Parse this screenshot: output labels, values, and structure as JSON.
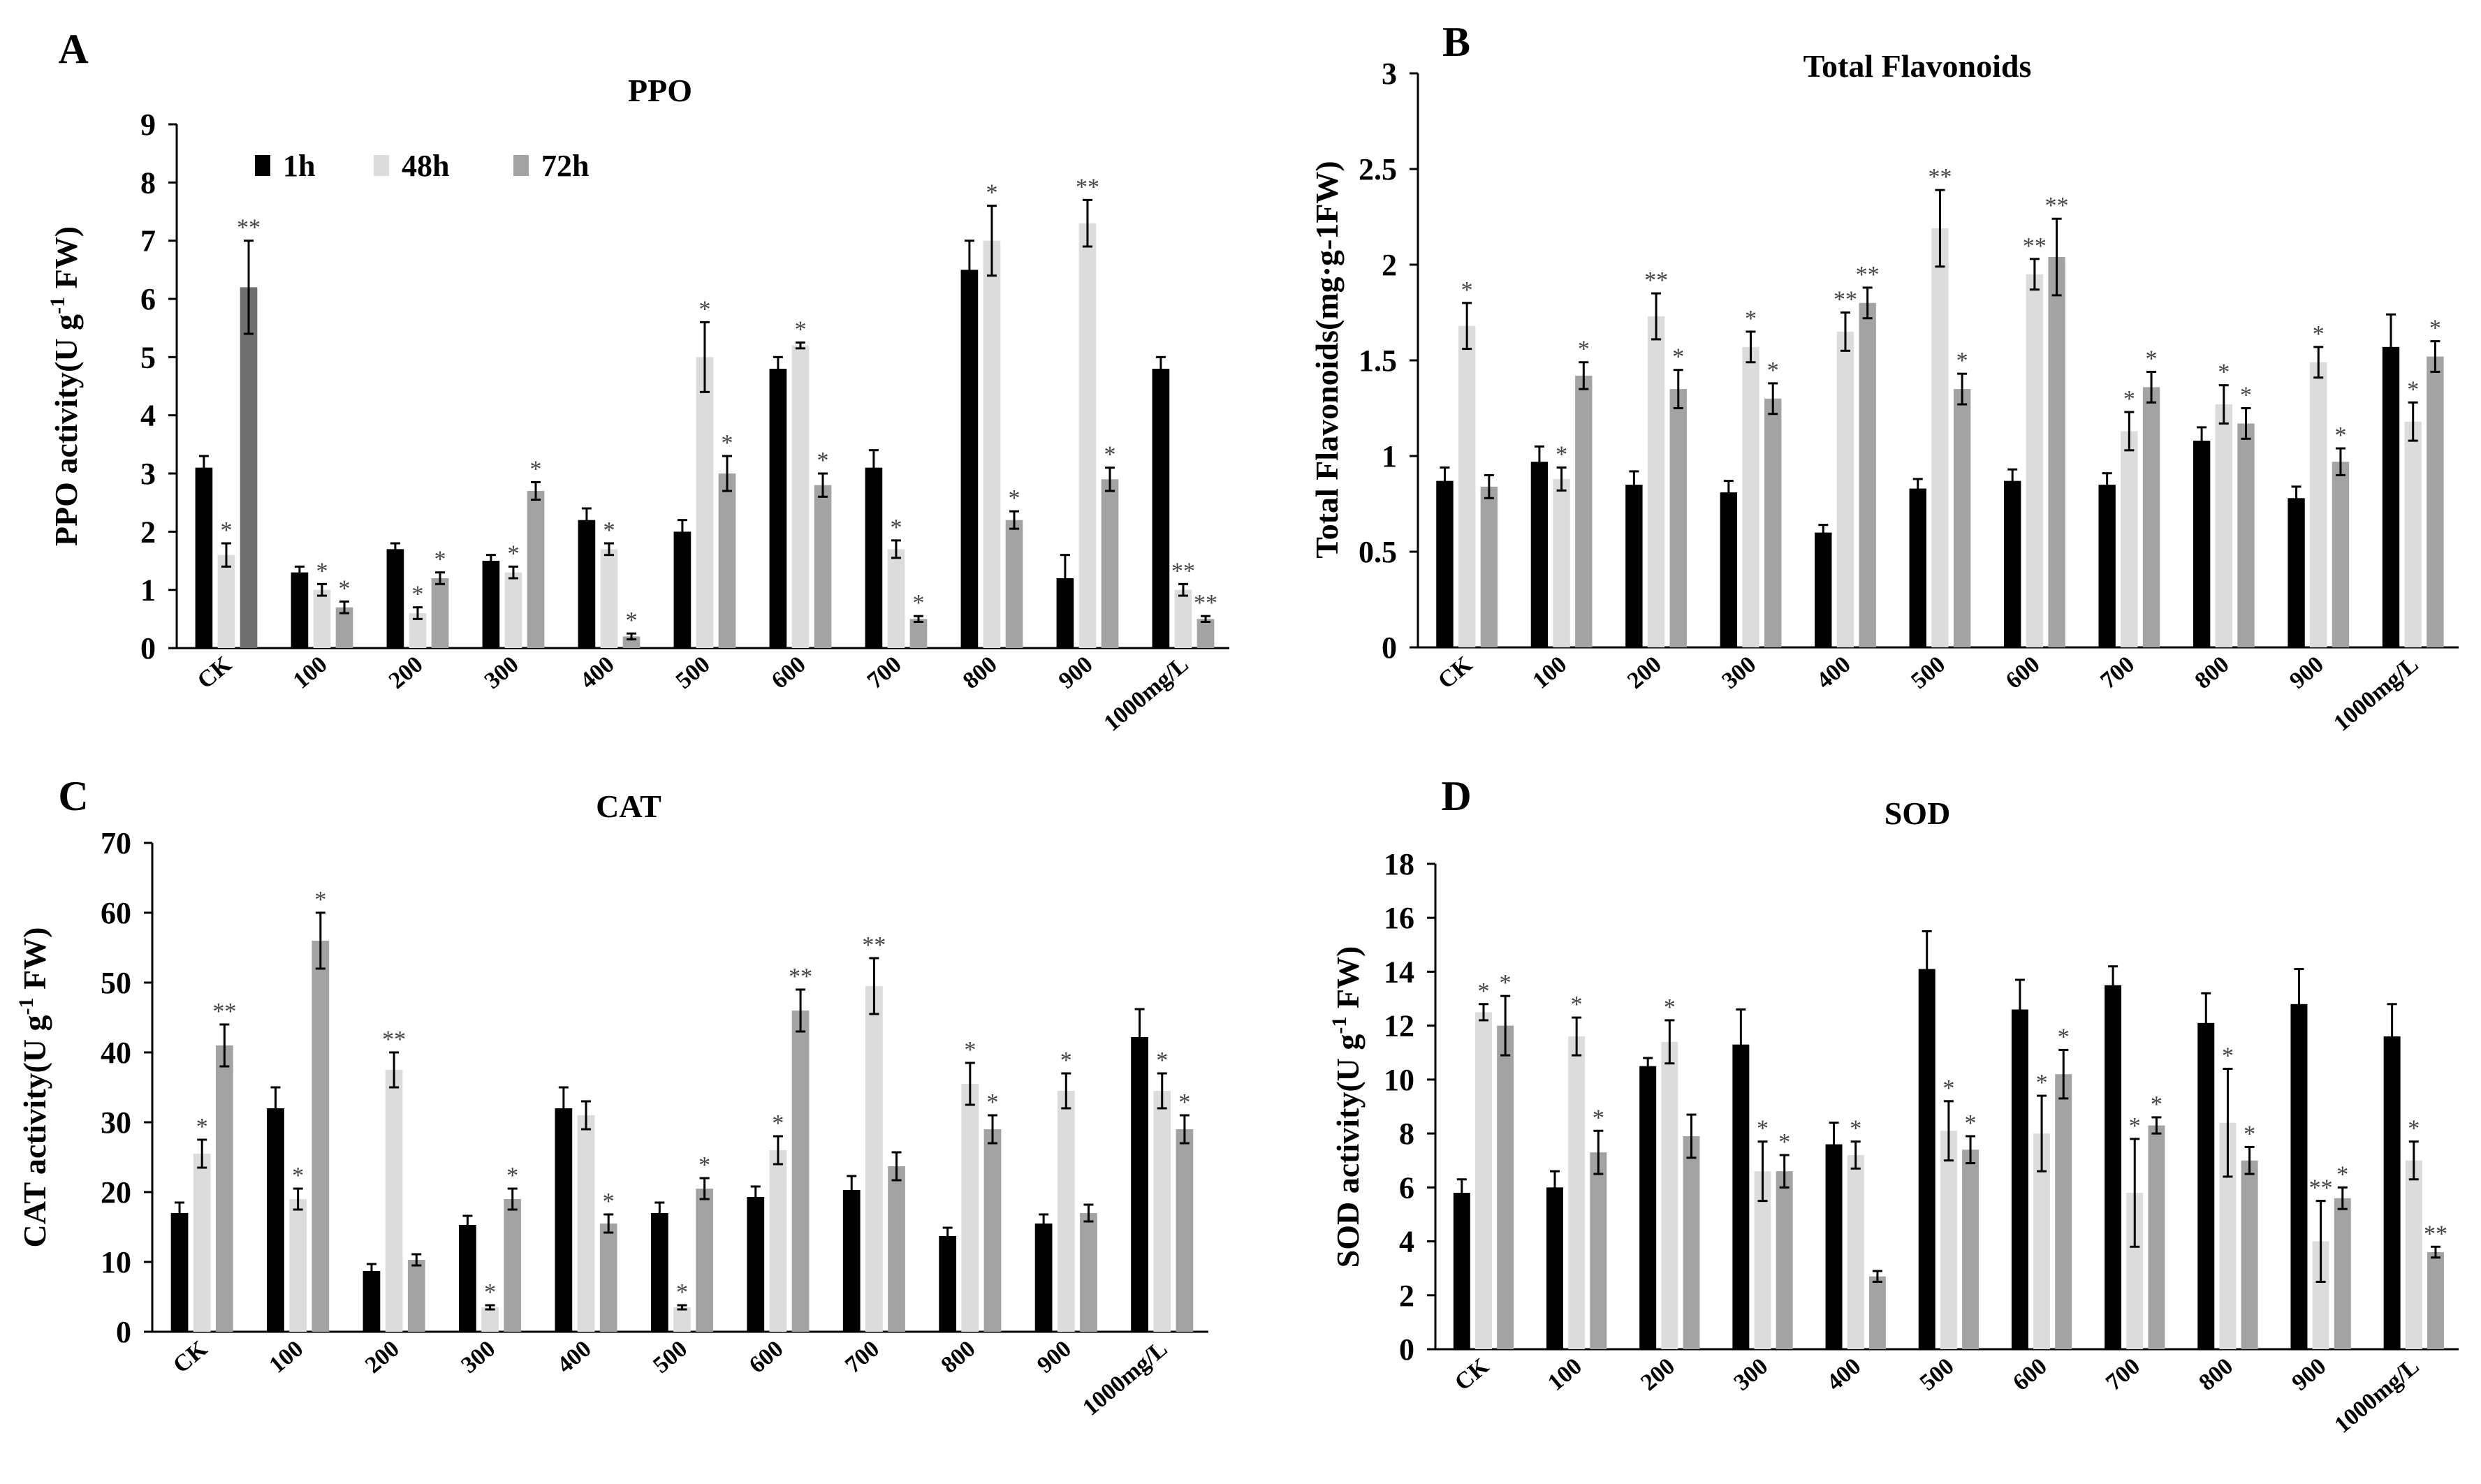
{
  "colors": {
    "s1": "#000000",
    "s2": "#dcdcdc",
    "s3": "#a3a3a3",
    "s3_highlight": "#707070"
  },
  "legend": [
    "1h",
    "48h",
    "72h"
  ],
  "chart_data": [
    {
      "panel": "A",
      "type": "bar",
      "title": "PPO",
      "ylabel": "PPO activity(U g-1 FW)",
      "ylabel_parts": {
        "main": "PPO activity(U g",
        "sup": "-1",
        "tail": " FW)"
      },
      "ylim": [
        0,
        9
      ],
      "yticks": [
        "0",
        "1",
        "2",
        "3",
        "4",
        "5",
        "6",
        "7",
        "8",
        "9"
      ],
      "categories": [
        "CK",
        "100",
        "200",
        "300",
        "400",
        "500",
        "600",
        "700",
        "800",
        "900",
        "1000mg/L"
      ],
      "series": [
        {
          "name": "1h",
          "values": [
            3.1,
            1.3,
            1.7,
            1.5,
            2.2,
            2.0,
            4.8,
            3.1,
            6.5,
            1.2,
            4.8
          ],
          "errors": [
            0.2,
            0.1,
            0.1,
            0.1,
            0.2,
            0.2,
            0.2,
            0.3,
            0.5,
            0.4,
            0.2
          ],
          "marks": [
            "",
            "",
            "",
            "",
            "",
            "",
            "",
            "",
            "",
            "",
            ""
          ]
        },
        {
          "name": "48h",
          "values": [
            1.6,
            1.0,
            0.6,
            1.3,
            1.7,
            5.0,
            5.2,
            1.7,
            7.0,
            7.3,
            1.0
          ],
          "errors": [
            0.2,
            0.1,
            0.1,
            0.1,
            0.1,
            0.6,
            0.05,
            0.15,
            0.6,
            0.4,
            0.1
          ],
          "marks": [
            "*",
            "*",
            "*",
            "*",
            "*",
            "*",
            "*",
            "*",
            "*",
            "**",
            "**"
          ]
        },
        {
          "name": "72h",
          "values": [
            6.2,
            0.7,
            1.2,
            2.7,
            0.2,
            3.0,
            2.8,
            0.5,
            2.2,
            2.9,
            0.5
          ],
          "errors": [
            0.8,
            0.1,
            0.1,
            0.15,
            0.05,
            0.3,
            0.2,
            0.05,
            0.15,
            0.2,
            0.05
          ],
          "marks": [
            "**",
            "*",
            "*",
            "*",
            "*",
            "*",
            "*",
            "*",
            "*",
            "*",
            "**"
          ]
        }
      ]
    },
    {
      "panel": "B",
      "type": "bar",
      "title": "Total Flavonoids",
      "ylabel": "Total Flavonoids(mg·g-1FW)",
      "ylabel_parts": {
        "main": "Total Flavonoids(mg·g-1FW)",
        "sup": "",
        "tail": ""
      },
      "ylim": [
        0,
        3
      ],
      "yticks": [
        "0",
        "0.5",
        "1",
        "1.5",
        "2",
        "2.5",
        "3"
      ],
      "categories": [
        "CK",
        "100",
        "200",
        "300",
        "400",
        "500",
        "600",
        "700",
        "800",
        "900",
        "1000mg/L"
      ],
      "series": [
        {
          "name": "1h",
          "values": [
            0.87,
            0.97,
            0.85,
            0.81,
            0.6,
            0.83,
            0.87,
            0.85,
            1.08,
            0.78,
            1.57
          ],
          "errors": [
            0.07,
            0.08,
            0.07,
            0.06,
            0.04,
            0.05,
            0.06,
            0.06,
            0.07,
            0.06,
            0.17
          ],
          "marks": [
            "",
            "",
            "",
            "",
            "",
            "",
            "",
            "",
            "",
            "",
            ""
          ]
        },
        {
          "name": "48h",
          "values": [
            1.68,
            0.88,
            1.73,
            1.57,
            1.65,
            2.19,
            1.95,
            1.13,
            1.27,
            1.49,
            1.18
          ],
          "errors": [
            0.12,
            0.06,
            0.12,
            0.08,
            0.1,
            0.2,
            0.08,
            0.1,
            0.1,
            0.08,
            0.1
          ],
          "marks": [
            "*",
            "*",
            "**",
            "*",
            "**",
            "**",
            "**",
            "*",
            "*",
            "*",
            "*"
          ]
        },
        {
          "name": "72h",
          "values": [
            0.84,
            1.42,
            1.35,
            1.3,
            1.8,
            1.35,
            2.04,
            1.36,
            1.17,
            0.97,
            1.52
          ],
          "errors": [
            0.06,
            0.07,
            0.1,
            0.08,
            0.08,
            0.08,
            0.2,
            0.08,
            0.08,
            0.07,
            0.08
          ],
          "marks": [
            "",
            "*",
            "*",
            "*",
            "**",
            "*",
            "**",
            "*",
            "*",
            "*",
            "*"
          ]
        }
      ]
    },
    {
      "panel": "C",
      "type": "bar",
      "title": "CAT",
      "ylabel": "CAT activity(U g-1 FW)",
      "ylabel_parts": {
        "main": "CAT activity(U g",
        "sup": "-1",
        "tail": " FW)"
      },
      "ylim": [
        0,
        70
      ],
      "yticks": [
        "0",
        "10",
        "20",
        "30",
        "40",
        "50",
        "60",
        "70"
      ],
      "categories": [
        "CK",
        "100",
        "200",
        "300",
        "400",
        "500",
        "600",
        "700",
        "800",
        "900",
        "1000mg/L"
      ],
      "series": [
        {
          "name": "1h",
          "values": [
            17,
            32,
            8.7,
            15.3,
            32,
            17,
            19.3,
            20.3,
            13.7,
            15.5,
            42.2
          ],
          "errors": [
            1.5,
            3,
            1,
            1.3,
            3,
            1.5,
            1.5,
            2,
            1.2,
            1.3,
            4
          ],
          "marks": [
            "",
            "",
            "",
            "",
            "",
            "",
            "",
            "",
            "",
            "",
            ""
          ]
        },
        {
          "name": "48h",
          "values": [
            25.5,
            19,
            37.5,
            3.5,
            31,
            3.5,
            26,
            49.5,
            35.5,
            34.5,
            34.5
          ],
          "errors": [
            2,
            1.5,
            2.5,
            0.3,
            2,
            0.3,
            2,
            4,
            3,
            2.5,
            2.5
          ],
          "marks": [
            "*",
            "*",
            "**",
            "*",
            "",
            "*",
            "*",
            "**",
            "*",
            "*",
            "*"
          ]
        },
        {
          "name": "72h",
          "values": [
            41,
            56,
            10.3,
            19,
            15.5,
            20.5,
            46,
            23.7,
            29,
            17,
            29
          ],
          "errors": [
            3,
            4,
            0.8,
            1.5,
            1.3,
            1.5,
            3,
            2,
            2,
            1.2,
            2
          ],
          "marks": [
            "**",
            "*",
            "",
            "*",
            "*",
            "*",
            "**",
            "",
            "*",
            "",
            "*"
          ]
        }
      ]
    },
    {
      "panel": "D",
      "type": "bar",
      "title": "SOD",
      "ylabel": "SOD activity(U g-1 FW)",
      "ylabel_parts": {
        "main": "SOD activity(U g",
        "sup": "-1",
        "tail": " FW)"
      },
      "ylim": [
        0,
        18
      ],
      "yticks": [
        "0",
        "2",
        "4",
        "6",
        "8",
        "10",
        "12",
        "14",
        "16",
        "18"
      ],
      "categories": [
        "CK",
        "100",
        "200",
        "300",
        "400",
        "500",
        "600",
        "700",
        "800",
        "900",
        "1000mg/L"
      ],
      "series": [
        {
          "name": "1h",
          "values": [
            5.8,
            6.0,
            10.5,
            11.3,
            7.6,
            14.1,
            12.6,
            13.5,
            12.1,
            12.8,
            11.6
          ],
          "errors": [
            0.5,
            0.6,
            0.3,
            1.3,
            0.8,
            1.4,
            1.1,
            0.7,
            1.1,
            1.3,
            1.2
          ],
          "marks": [
            "",
            "",
            "",
            "",
            "",
            "",
            "",
            "",
            "",
            "",
            ""
          ]
        },
        {
          "name": "48h",
          "values": [
            12.5,
            11.6,
            11.4,
            6.6,
            7.2,
            8.1,
            8.0,
            5.8,
            8.4,
            4.0,
            7.0
          ],
          "errors": [
            0.3,
            0.7,
            0.8,
            1.1,
            0.5,
            1.1,
            1.4,
            2.0,
            2.0,
            1.5,
            0.7
          ],
          "marks": [
            "*",
            "*",
            "*",
            "*",
            "*",
            "*",
            "*",
            "*",
            "*",
            "**",
            "*"
          ]
        },
        {
          "name": "72h",
          "values": [
            12.0,
            7.3,
            7.9,
            6.6,
            2.7,
            7.4,
            10.2,
            8.3,
            7.0,
            5.6,
            3.6
          ],
          "errors": [
            1.1,
            0.8,
            0.8,
            0.6,
            0.2,
            0.5,
            0.9,
            0.3,
            0.5,
            0.4,
            0.2
          ],
          "marks": [
            "*",
            "*",
            "",
            "*",
            "",
            "*",
            "*",
            "*",
            "*",
            "*",
            "**"
          ]
        }
      ]
    }
  ]
}
